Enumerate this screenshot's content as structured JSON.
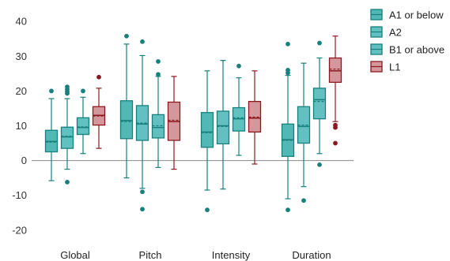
{
  "chart_data": {
    "type": "box",
    "title": "",
    "xlabel": "",
    "ylabel": "",
    "ylim": [
      -23,
      43
    ],
    "yticks": [
      -20,
      -10,
      0,
      10,
      20,
      30,
      40
    ],
    "grid": false,
    "zero_line": true,
    "legend_position": "top-right",
    "categories": [
      "Global",
      "Pitch",
      "Intensity",
      "Duration"
    ],
    "series": [
      {
        "name": "A1 or below",
        "color": "#26a6a3",
        "stroke": "#17807d",
        "boxes": [
          {
            "category": "Global",
            "min": -5.8,
            "q1": 2.5,
            "median": 5.5,
            "mean": 5.3,
            "q3": 8.7,
            "max": 17.8,
            "outliers": [
              20
            ]
          },
          {
            "category": "Pitch",
            "min": -5,
            "q1": 6.3,
            "median": 11.5,
            "mean": 11.2,
            "q3": 17.2,
            "max": 33.5,
            "outliers": [
              35.8
            ]
          },
          {
            "category": "Intensity",
            "min": -8.5,
            "q1": 3.8,
            "median": 8.2,
            "mean": 8.0,
            "q3": 13.8,
            "max": 25.8,
            "outliers": [
              -14.2
            ]
          },
          {
            "category": "Duration",
            "min": -11,
            "q1": 1.2,
            "median": 6.0,
            "mean": 5.8,
            "q3": 10.5,
            "max": 24.5,
            "outliers": [
              33.5,
              26,
              25.2,
              -14.2
            ]
          }
        ]
      },
      {
        "name": "A2",
        "color": "#3bb2b0",
        "stroke": "#17807d",
        "boxes": [
          {
            "category": "Global",
            "min": -2.5,
            "q1": 3.5,
            "median": 6.8,
            "mean": 7.0,
            "q3": 9.6,
            "max": 17.8,
            "outliers": [
              21.2,
              20.5,
              19.8,
              19.3,
              -6.2
            ]
          },
          {
            "category": "Pitch",
            "min": -8,
            "q1": 5.8,
            "median": 10.5,
            "mean": 10.8,
            "q3": 15.8,
            "max": 30.2,
            "outliers": [
              34.2,
              -9,
              -14
            ]
          },
          {
            "category": "Intensity",
            "min": -8.2,
            "q1": 4.8,
            "median": 10.0,
            "mean": 9.8,
            "q3": 14.2,
            "max": 28.8,
            "outliers": []
          },
          {
            "category": "Duration",
            "min": -7.5,
            "q1": 5.0,
            "median": 9.8,
            "mean": 10.2,
            "q3": 15.5,
            "max": 28.0,
            "outliers": [
              -11.5
            ]
          }
        ]
      },
      {
        "name": "B1 or above",
        "color": "#3bb2b0",
        "stroke": "#17807d",
        "boxes": [
          {
            "category": "Global",
            "min": 2.0,
            "q1": 7.5,
            "median": 9.5,
            "mean": 9.7,
            "q3": 12.3,
            "max": 18.2,
            "outliers": [
              20
            ]
          },
          {
            "category": "Pitch",
            "min": -2,
            "q1": 6.5,
            "median": 9.5,
            "mean": 10.0,
            "q3": 13.2,
            "max": 24.2,
            "outliers": [
              28.5,
              24.8
            ]
          },
          {
            "category": "Intensity",
            "min": 1.5,
            "q1": 8.5,
            "median": 12.0,
            "mean": 12.3,
            "q3": 15.2,
            "max": 23.8,
            "outliers": [
              27.2
            ]
          },
          {
            "category": "Duration",
            "min": 2.0,
            "q1": 12.0,
            "median": 17.5,
            "mean": 17.0,
            "q3": 20.8,
            "max": 29.5,
            "outliers": [
              33.8,
              -1.2
            ]
          }
        ]
      },
      {
        "name": "L1",
        "color": "#c97d82",
        "stroke": "#8b1a1f",
        "boxes": [
          {
            "category": "Global",
            "min": 3.5,
            "q1": 10.2,
            "median": 13.0,
            "mean": 12.8,
            "q3": 15.5,
            "max": 20.8,
            "outliers": [
              24
            ]
          },
          {
            "category": "Pitch",
            "min": -2.5,
            "q1": 5.8,
            "median": 11.2,
            "mean": 11.6,
            "q3": 16.8,
            "max": 24.2,
            "outliers": []
          },
          {
            "category": "Intensity",
            "min": -1,
            "q1": 8.2,
            "median": 12.2,
            "mean": 12.5,
            "q3": 17.0,
            "max": 25.8,
            "outliers": []
          },
          {
            "category": "Duration",
            "min": 11.2,
            "q1": 22.5,
            "median": 25.8,
            "mean": 26.3,
            "q3": 29.5,
            "max": 35.8,
            "outliers": [
              10.2,
              9.5,
              5
            ]
          }
        ]
      }
    ]
  }
}
